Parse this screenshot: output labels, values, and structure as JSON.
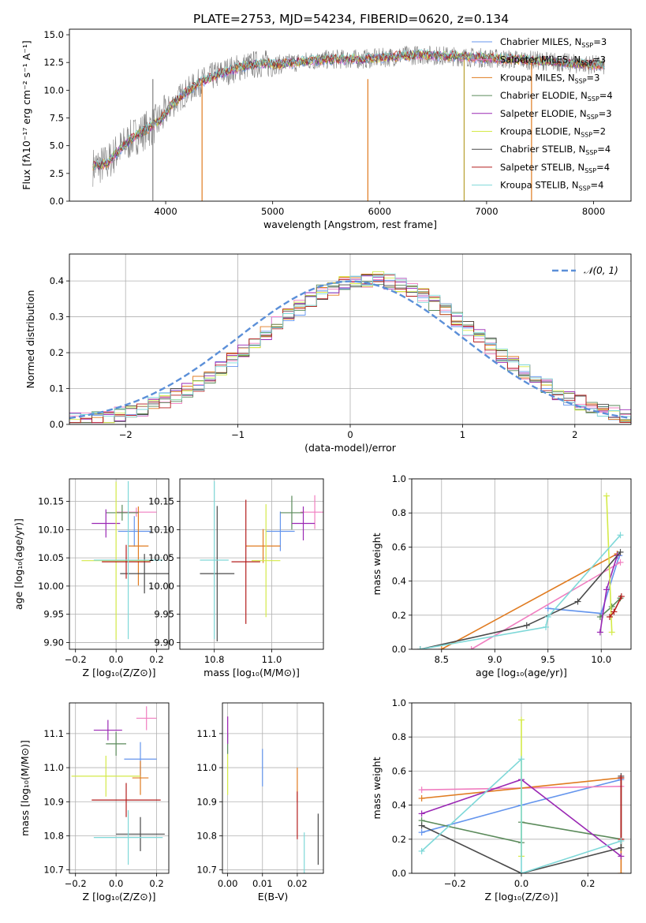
{
  "figure": {
    "title": "PLATE=2753, MJD=54234, FIBERID=0620, z=0.134"
  },
  "models": [
    {
      "name": "Chabrier MILES",
      "nssp": "3",
      "color": "#6495ed"
    },
    {
      "name": "Salpeter MILES",
      "nssp": "3",
      "color": "#f07ec0"
    },
    {
      "name": "Kroupa MILES",
      "nssp": "3",
      "color": "#e07b20"
    },
    {
      "name": "Chabrier ELODIE",
      "nssp": "4",
      "color": "#5a8a5a"
    },
    {
      "name": "Salpeter ELODIE",
      "nssp": "3",
      "color": "#9a28b4"
    },
    {
      "name": "Kroupa ELODIE",
      "nssp": "2",
      "color": "#d4ea48"
    },
    {
      "name": "Chabrier STELIB",
      "nssp": "4",
      "color": "#4a4a4a"
    },
    {
      "name": "Salpeter STELIB",
      "nssp": "4",
      "color": "#b41e1e"
    },
    {
      "name": "Kroupa STELIB",
      "nssp": "4",
      "color": "#7ed8d8"
    }
  ],
  "legend_nssp_label": "N",
  "legend_nssp_sub": "SSP",
  "chart_data": [
    {
      "id": "spectrum",
      "type": "line",
      "xlabel": "wavelength [Angstrom, rest frame]",
      "ylabel": "Flux [fλ10⁻¹⁷ erg cm⁻² s⁻¹ A⁻¹]",
      "xlim": [
        3100,
        8350
      ],
      "ylim": [
        0,
        15.5
      ],
      "xticks": [
        4000,
        5000,
        6000,
        7000,
        8000
      ],
      "yticks": [
        0.0,
        2.5,
        5.0,
        7.5,
        10.0,
        12.5,
        15.0
      ],
      "continuum": {
        "x": [
          3320,
          3450,
          3550,
          3700,
          3850,
          3950,
          4050,
          4150,
          4300,
          4450,
          4600,
          4750,
          4900,
          5050,
          5200,
          5400,
          5600,
          5800,
          6000,
          6200,
          6400,
          6600,
          6800,
          7000,
          7200,
          7400,
          7600,
          7800,
          8000,
          8100
        ],
        "y": [
          3.1,
          3.4,
          4.5,
          5.8,
          6.6,
          7.3,
          8.6,
          9.5,
          10.6,
          11.3,
          11.8,
          12.2,
          12.4,
          12.3,
          12.5,
          12.7,
          12.8,
          12.8,
          12.9,
          13.1,
          13.2,
          13.1,
          13.0,
          12.9,
          12.8,
          12.7,
          12.6,
          12.4,
          12.3,
          12.2
        ]
      },
      "spikes": [
        3880,
        4340,
        5890,
        6790,
        7420
      ]
    },
    {
      "id": "residuals",
      "type": "bar",
      "xlabel": "(data-model)/error",
      "ylabel": "Normed distribution",
      "xlim": [
        -2.5,
        2.5
      ],
      "ylim": [
        0,
        0.475
      ],
      "xticks": [
        -2,
        -1,
        0,
        1,
        2
      ],
      "yticks": [
        0.0,
        0.1,
        0.2,
        0.3,
        0.4
      ],
      "bin_width": 0.1,
      "reference": {
        "name": "𝒩(0, 1)",
        "mean": 0,
        "sigma": 1,
        "color": "#5b8fd8"
      }
    },
    {
      "id": "age_vs_Z",
      "type": "scatter",
      "xlabel": "Z [log₁₀(Z/Z⊙)]",
      "ylabel": "age  [log₁₀(age/yr)]",
      "xlim": [
        -0.23,
        0.26
      ],
      "ylim": [
        9.888,
        10.19
      ],
      "xticks": [
        -0.2,
        0.0,
        0.2
      ],
      "yticks": [
        9.9,
        9.95,
        10.0,
        10.05,
        10.1,
        10.15
      ],
      "points": [
        {
          "x": 0.09,
          "y": 10.097,
          "xerr": 0.08,
          "yerr": 0.027
        },
        {
          "x": 0.1,
          "y": 10.131,
          "xerr": 0.1,
          "yerr": 0.008
        },
        {
          "x": 0.11,
          "y": 10.071,
          "xerr": 0.05,
          "yerr": 0.07
        },
        {
          "x": 0.03,
          "y": 10.13,
          "xerr": 0.08,
          "yerr": 0.014
        },
        {
          "x": -0.05,
          "y": 10.111,
          "xerr": 0.07,
          "yerr": 0.025
        },
        {
          "x": 0.0,
          "y": 10.045,
          "xerr": 0.17,
          "yerr": 0.14
        },
        {
          "x": 0.14,
          "y": 10.022,
          "xerr": 0.12,
          "yerr": 0.035
        },
        {
          "x": 0.05,
          "y": 10.043,
          "xerr": 0.12,
          "yerr": 0.03
        },
        {
          "x": 0.06,
          "y": 10.046,
          "xerr": 0.17,
          "yerr": 0.14
        }
      ]
    },
    {
      "id": "age_vs_mass",
      "type": "scatter",
      "xlabel": "mass [log₁₀(M/M⊙)]",
      "ylabel": "",
      "xlim": [
        10.68,
        11.18
      ],
      "ylim": [
        9.888,
        10.19
      ],
      "xticks": [
        10.8,
        11.0
      ],
      "yticks": [
        9.9,
        9.95,
        10.0,
        10.05,
        10.1,
        10.15
      ],
      "points": [
        {
          "x": 11.03,
          "y": 10.097,
          "xerr": 0.05,
          "yerr": 0.035
        },
        {
          "x": 11.15,
          "y": 10.131,
          "xerr": 0.05,
          "yerr": 0.03
        },
        {
          "x": 10.97,
          "y": 10.071,
          "xerr": 0.06,
          "yerr": 0.03
        },
        {
          "x": 11.07,
          "y": 10.13,
          "xerr": 0.04,
          "yerr": 0.03
        },
        {
          "x": 11.11,
          "y": 10.111,
          "xerr": 0.04,
          "yerr": 0.03
        },
        {
          "x": 10.98,
          "y": 10.045,
          "xerr": 0.05,
          "yerr": 0.1
        },
        {
          "x": 10.81,
          "y": 10.022,
          "xerr": 0.06,
          "yerr": 0.12
        },
        {
          "x": 10.91,
          "y": 10.043,
          "xerr": 0.05,
          "yerr": 0.11
        },
        {
          "x": 10.8,
          "y": 10.046,
          "xerr": 0.05,
          "yerr": 0.14
        }
      ]
    },
    {
      "id": "weight_vs_age",
      "type": "line",
      "xlabel": "age  [log₁₀(age/yr)]",
      "ylabel": "mass weight",
      "xlim": [
        8.22,
        10.28
      ],
      "ylim": [
        0,
        1.0
      ],
      "xticks": [
        8.5,
        9.0,
        9.5,
        10.0
      ],
      "yticks": [
        0.0,
        0.2,
        0.4,
        0.6,
        0.8,
        1.0
      ],
      "series": [
        {
          "x": [
            9.5,
            10.0,
            10.17
          ],
          "y": [
            0.24,
            0.21,
            0.55
          ]
        },
        {
          "x": [
            8.78,
            10.18
          ],
          "y": [
            0.0,
            0.51
          ]
        },
        {
          "x": [
            8.5,
            10.15
          ],
          "y": [
            0.0,
            0.56
          ]
        },
        {
          "x": [
            9.99,
            10.1,
            10.18
          ],
          "y": [
            0.19,
            0.25,
            0.3
          ]
        },
        {
          "x": [
            9.99,
            10.05,
            10.15
          ],
          "y": [
            0.1,
            0.35,
            0.55
          ]
        },
        {
          "x": [
            10.05,
            10.1
          ],
          "y": [
            0.9,
            0.1
          ]
        },
        {
          "x": [
            8.3,
            9.3,
            9.78,
            10.18
          ],
          "y": [
            0.0,
            0.14,
            0.28,
            0.57
          ]
        },
        {
          "x": [
            10.08,
            10.12,
            10.19
          ],
          "y": [
            0.19,
            0.22,
            0.31
          ]
        },
        {
          "x": [
            8.3,
            9.48,
            9.5,
            10.18
          ],
          "y": [
            0.0,
            0.13,
            0.19,
            0.67
          ]
        }
      ]
    },
    {
      "id": "mass_vs_Z",
      "type": "scatter",
      "xlabel": "Z [log₁₀(Z/Z⊙)]",
      "ylabel": "mass [log₁₀(M/M⊙)]",
      "xlim": [
        -0.23,
        0.26
      ],
      "ylim": [
        10.69,
        11.19
      ],
      "xticks": [
        -0.2,
        0.0,
        0.2
      ],
      "yticks": [
        10.7,
        10.8,
        10.9,
        11.0,
        11.1
      ],
      "points": [
        {
          "x": 0.12,
          "y": 11.025,
          "xerr": 0.08,
          "yerr": 0.05
        },
        {
          "x": 0.15,
          "y": 11.145,
          "xerr": 0.05,
          "yerr": 0.035
        },
        {
          "x": 0.12,
          "y": 10.97,
          "xerr": 0.04,
          "yerr": 0.05
        },
        {
          "x": 0.0,
          "y": 11.07,
          "xerr": 0.05,
          "yerr": 0.035
        },
        {
          "x": -0.04,
          "y": 11.11,
          "xerr": 0.07,
          "yerr": 0.03
        },
        {
          "x": -0.05,
          "y": 10.975,
          "xerr": 0.17,
          "yerr": 0.06
        },
        {
          "x": 0.12,
          "y": 10.805,
          "xerr": 0.12,
          "yerr": 0.05
        },
        {
          "x": 0.05,
          "y": 10.905,
          "xerr": 0.17,
          "yerr": 0.05
        },
        {
          "x": 0.06,
          "y": 10.795,
          "xerr": 0.17,
          "yerr": 0.08
        }
      ]
    },
    {
      "id": "mass_vs_EBV",
      "type": "scatter",
      "xlabel": "E(B-V)",
      "ylabel": "",
      "xlim": [
        -0.0015,
        0.0275
      ],
      "ylim": [
        10.69,
        11.19
      ],
      "xticks": [
        0.0,
        0.01,
        0.02
      ],
      "yticks": [
        10.7,
        10.8,
        10.9,
        11.0,
        11.1
      ],
      "points": [
        {
          "x": 0.01,
          "y": 11.0,
          "xerr": 0,
          "yerr": 0.055
        },
        {
          "x": 0.0,
          "y": 11.12,
          "xerr": 0,
          "yerr": 0.03
        },
        {
          "x": 0.02,
          "y": 10.95,
          "xerr": 0,
          "yerr": 0.05
        },
        {
          "x": 0.0,
          "y": 11.07,
          "xerr": 0,
          "yerr": 0.03
        },
        {
          "x": 0.0,
          "y": 11.11,
          "xerr": 0,
          "yerr": 0.04
        },
        {
          "x": 0.0,
          "y": 10.98,
          "xerr": 0,
          "yerr": 0.06
        },
        {
          "x": 0.026,
          "y": 10.79,
          "xerr": 0,
          "yerr": 0.075
        },
        {
          "x": 0.02,
          "y": 10.86,
          "xerr": 0,
          "yerr": 0.07
        },
        {
          "x": 0.022,
          "y": 10.75,
          "xerr": 0,
          "yerr": 0.06
        }
      ]
    },
    {
      "id": "weight_vs_Z",
      "type": "line",
      "xlabel": "Z [log₁₀(Z/Z⊙)]",
      "ylabel": "mass weight",
      "xlim": [
        -0.33,
        0.33
      ],
      "ylim": [
        0,
        1.0
      ],
      "xticks": [
        -0.2,
        0.0,
        0.2
      ],
      "yticks": [
        0.0,
        0.2,
        0.4,
        0.6,
        0.8,
        1.0
      ],
      "series": [
        {
          "x": [
            -0.3,
            0.0,
            0.3
          ],
          "y": [
            0.24,
            0.4,
            0.55
          ]
        },
        {
          "x": [
            -0.3,
            0.3
          ],
          "y": [
            0.49,
            0.51
          ]
        },
        {
          "x": [
            -0.3,
            0.3,
            0.3
          ],
          "y": [
            0.44,
            0.56,
            0.0
          ]
        },
        {
          "x": [
            -0.3,
            0.0,
            0.0,
            0.3
          ],
          "y": [
            0.31,
            0.18,
            0.3,
            0.2
          ]
        },
        {
          "x": [
            -0.3,
            0.0,
            0.3
          ],
          "y": [
            0.35,
            0.55,
            0.1
          ]
        },
        {
          "x": [
            0.0,
            0.0
          ],
          "y": [
            0.1,
            0.9
          ]
        },
        {
          "x": [
            -0.3,
            0.0,
            0.3,
            0.3
          ],
          "y": [
            0.28,
            0.0,
            0.15,
            0.57
          ]
        },
        {
          "x": [
            0.3,
            0.3
          ],
          "y": [
            0.2,
            0.56
          ]
        },
        {
          "x": [
            -0.3,
            0.0,
            0.0,
            0.3
          ],
          "y": [
            0.13,
            0.67,
            0.0,
            0.19
          ]
        }
      ]
    }
  ]
}
